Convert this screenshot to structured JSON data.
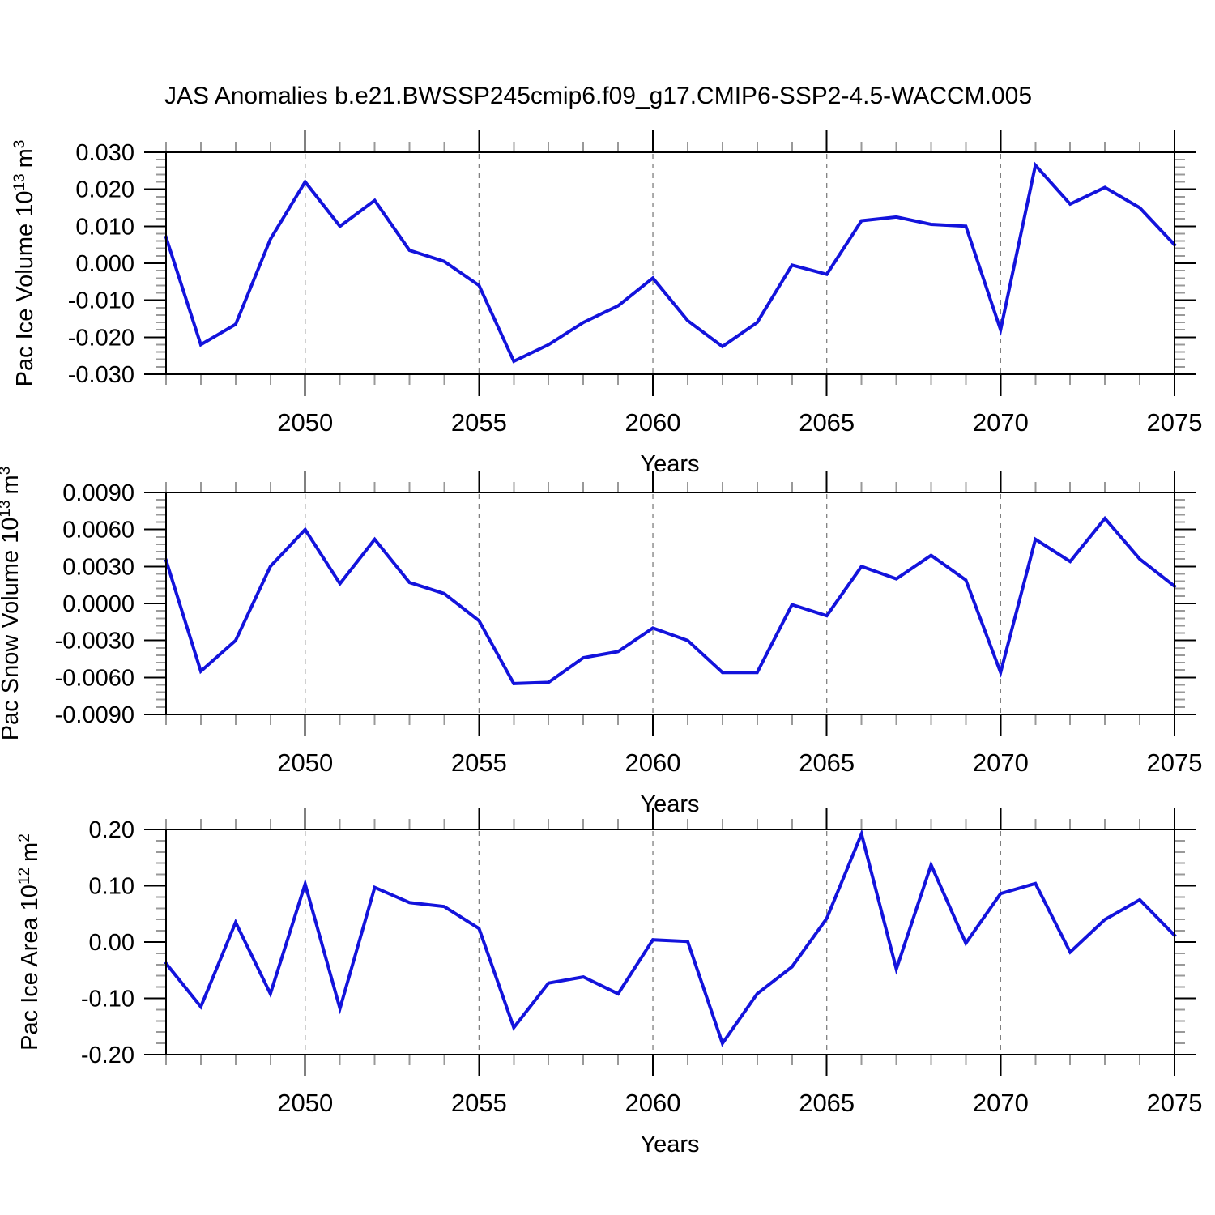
{
  "page": {
    "background": "#ffffff",
    "text_color": "#000000"
  },
  "chart_data": [
    {
      "id": "ice-volume",
      "type": "line",
      "title": "JAS Anomalies b.e21.BWSSP245cmip6.f09_g17.CMIP6-SSP2-4.5-WACCM.005",
      "xlabel": "Years",
      "ylabel": "Pac Ice Volume 10^13 m^3",
      "ylabel_parts": {
        "base": "Pac Ice Volume 10",
        "exp": "13",
        "unit": "m",
        "unit_exp": "3"
      },
      "x": [
        2046,
        2047,
        2048,
        2049,
        2050,
        2051,
        2052,
        2053,
        2054,
        2055,
        2056,
        2057,
        2058,
        2059,
        2060,
        2061,
        2062,
        2063,
        2064,
        2065,
        2066,
        2067,
        2068,
        2069,
        2070,
        2071,
        2072,
        2073,
        2074,
        2075
      ],
      "series": [
        {
          "name": "Pac Ice Volume anomaly",
          "color": "#1313dc",
          "values": [
            0.007,
            -0.022,
            -0.0165,
            0.0065,
            0.022,
            0.01,
            0.017,
            0.0035,
            0.0005,
            -0.006,
            -0.0265,
            -0.022,
            -0.016,
            -0.0115,
            -0.004,
            -0.0155,
            -0.0225,
            -0.016,
            -0.0005,
            -0.003,
            0.0115,
            0.0125,
            0.0105,
            0.01,
            -0.018,
            0.0265,
            0.016,
            0.0205,
            0.015,
            0.005
          ]
        }
      ],
      "xlim": [
        2046,
        2075
      ],
      "ylim": [
        -0.03,
        0.03
      ],
      "xticks": [
        {
          "v": 2050,
          "label": "2050"
        },
        {
          "v": 2055,
          "label": "2055"
        },
        {
          "v": 2060,
          "label": "2060"
        },
        {
          "v": 2065,
          "label": "2065"
        },
        {
          "v": 2070,
          "label": "2070"
        },
        {
          "v": 2075,
          "label": "2075"
        }
      ],
      "yticks": [
        {
          "v": 0.03,
          "label": "0.030"
        },
        {
          "v": 0.02,
          "label": "0.020"
        },
        {
          "v": 0.01,
          "label": "0.010"
        },
        {
          "v": 0.0,
          "label": "0.000"
        },
        {
          "v": -0.01,
          "label": "-0.010"
        },
        {
          "v": -0.02,
          "label": "-0.020"
        },
        {
          "v": -0.03,
          "label": "-0.030"
        }
      ],
      "x_minor_step": 1,
      "y_minor_step": 0.002,
      "grid_x": [
        2050,
        2055,
        2060,
        2065,
        2070
      ],
      "grid": "vertical-dashed",
      "legend": "none"
    },
    {
      "id": "snow-volume",
      "type": "line",
      "title": "",
      "xlabel": "Years",
      "ylabel": "Pac Snow Volume 10^13 m^3",
      "ylabel_parts": {
        "base": "Pac Snow Volume 10",
        "exp": "13",
        "unit": "m",
        "unit_exp": "3"
      },
      "x": [
        2046,
        2047,
        2048,
        2049,
        2050,
        2051,
        2052,
        2053,
        2054,
        2055,
        2056,
        2057,
        2058,
        2059,
        2060,
        2061,
        2062,
        2063,
        2064,
        2065,
        2066,
        2067,
        2068,
        2069,
        2070,
        2071,
        2072,
        2073,
        2074,
        2075
      ],
      "series": [
        {
          "name": "Pac Snow Volume anomaly",
          "color": "#1313dc",
          "values": [
            0.0035,
            -0.0055,
            -0.003,
            0.003,
            0.006,
            0.0016,
            0.0052,
            0.0017,
            0.0008,
            -0.0014,
            -0.0065,
            -0.0064,
            -0.0044,
            -0.0039,
            -0.002,
            -0.003,
            -0.0056,
            -0.0056,
            -0.0001,
            -0.001,
            0.003,
            0.002,
            0.0039,
            0.0019,
            -0.0056,
            0.0052,
            0.0034,
            0.0069,
            0.0036,
            0.0014
          ]
        }
      ],
      "xlim": [
        2046,
        2075
      ],
      "ylim": [
        -0.009,
        0.009
      ],
      "xticks": [
        {
          "v": 2050,
          "label": "2050"
        },
        {
          "v": 2055,
          "label": "2055"
        },
        {
          "v": 2060,
          "label": "2060"
        },
        {
          "v": 2065,
          "label": "2065"
        },
        {
          "v": 2070,
          "label": "2070"
        },
        {
          "v": 2075,
          "label": "2075"
        }
      ],
      "yticks": [
        {
          "v": 0.009,
          "label": "0.0090"
        },
        {
          "v": 0.006,
          "label": "0.0060"
        },
        {
          "v": 0.003,
          "label": "0.0030"
        },
        {
          "v": 0.0,
          "label": "0.0000"
        },
        {
          "v": -0.003,
          "label": "-0.0030"
        },
        {
          "v": -0.006,
          "label": "-0.0060"
        },
        {
          "v": -0.009,
          "label": "-0.0090"
        }
      ],
      "x_minor_step": 1,
      "y_minor_step": 0.0006,
      "grid_x": [
        2050,
        2055,
        2060,
        2065,
        2070
      ],
      "grid": "vertical-dashed",
      "legend": "none"
    },
    {
      "id": "ice-area",
      "type": "line",
      "title": "",
      "xlabel": "Years",
      "ylabel": "Pac Ice Area 10^12 m^2",
      "ylabel_parts": {
        "base": "Pac Ice Area 10",
        "exp": "12",
        "unit": "m",
        "unit_exp": "2"
      },
      "x": [
        2046,
        2047,
        2048,
        2049,
        2050,
        2051,
        2052,
        2053,
        2054,
        2055,
        2056,
        2057,
        2058,
        2059,
        2060,
        2061,
        2062,
        2063,
        2064,
        2065,
        2066,
        2067,
        2068,
        2069,
        2070,
        2071,
        2072,
        2073,
        2074,
        2075
      ],
      "series": [
        {
          "name": "Pac Ice Area anomaly",
          "color": "#1313dc",
          "values": [
            -0.038,
            -0.115,
            0.035,
            -0.092,
            0.103,
            -0.118,
            0.097,
            0.07,
            0.063,
            0.024,
            -0.152,
            -0.073,
            -0.062,
            -0.092,
            0.004,
            0.001,
            -0.18,
            -0.092,
            -0.044,
            0.042,
            0.192,
            -0.048,
            0.137,
            -0.002,
            0.086,
            0.104,
            -0.018,
            0.04,
            0.075,
            0.012
          ]
        }
      ],
      "xlim": [
        2046,
        2075
      ],
      "ylim": [
        -0.2,
        0.2
      ],
      "xticks": [
        {
          "v": 2050,
          "label": "2050"
        },
        {
          "v": 2055,
          "label": "2055"
        },
        {
          "v": 2060,
          "label": "2060"
        },
        {
          "v": 2065,
          "label": "2065"
        },
        {
          "v": 2070,
          "label": "2070"
        },
        {
          "v": 2075,
          "label": "2075"
        }
      ],
      "yticks": [
        {
          "v": 0.2,
          "label": "0.20"
        },
        {
          "v": 0.1,
          "label": "0.10"
        },
        {
          "v": 0.0,
          "label": "0.00"
        },
        {
          "v": -0.1,
          "label": "-0.10"
        },
        {
          "v": -0.2,
          "label": "-0.20"
        }
      ],
      "x_minor_step": 1,
      "y_minor_step": 0.02,
      "grid_x": [
        2050,
        2055,
        2060,
        2065,
        2070
      ],
      "grid": "vertical-dashed",
      "legend": "none"
    }
  ]
}
